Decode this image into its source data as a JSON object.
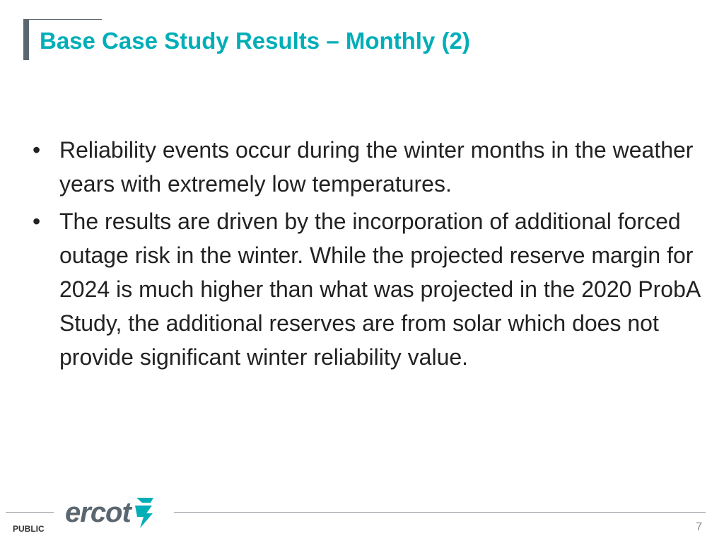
{
  "slide": {
    "title": "Base Case Study Results – Monthly (2)",
    "bullet_marker": "•",
    "bullets": [
      "Reliability events occur during the winter months in the weather years with extremely low temperatures.",
      "The results are driven by the incorporation of additional forced outage risk in the winter. While the projected reserve margin for 2024 is much higher than what was projected in the 2020 ProbA Study, the additional reserves are from solar which does not provide significant winter reliability value."
    ]
  },
  "footer": {
    "logo_text": "ercot",
    "logo_icon": "ercot-bolt-icon",
    "classification": "PUBLIC",
    "page_number": "7"
  },
  "colors": {
    "title": "#00aeb8",
    "accent_bar": "#5b6770",
    "body_text": "#222222",
    "logo_text": "#5b6770",
    "logo_mark": "#00aeb8"
  }
}
